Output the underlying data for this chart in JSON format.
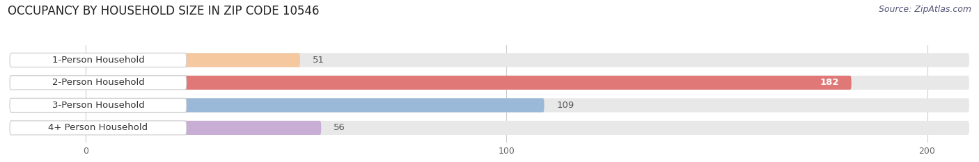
{
  "title": "OCCUPANCY BY HOUSEHOLD SIZE IN ZIP CODE 10546",
  "source": "Source: ZipAtlas.com",
  "categories": [
    "1-Person Household",
    "2-Person Household",
    "3-Person Household",
    "4+ Person Household"
  ],
  "values": [
    51,
    182,
    109,
    56
  ],
  "bar_colors": [
    "#f5c8a0",
    "#e07878",
    "#9ab8d8",
    "#c8aed4"
  ],
  "bar_bg_color": "#e8e8e8",
  "xlim": [
    -18,
    210
  ],
  "xticks": [
    0,
    100,
    200
  ],
  "title_fontsize": 12,
  "source_fontsize": 9,
  "label_fontsize": 9.5,
  "value_fontsize": 9.5,
  "figsize": [
    14.06,
    2.33
  ],
  "dpi": 100,
  "bg_color": "#ffffff"
}
